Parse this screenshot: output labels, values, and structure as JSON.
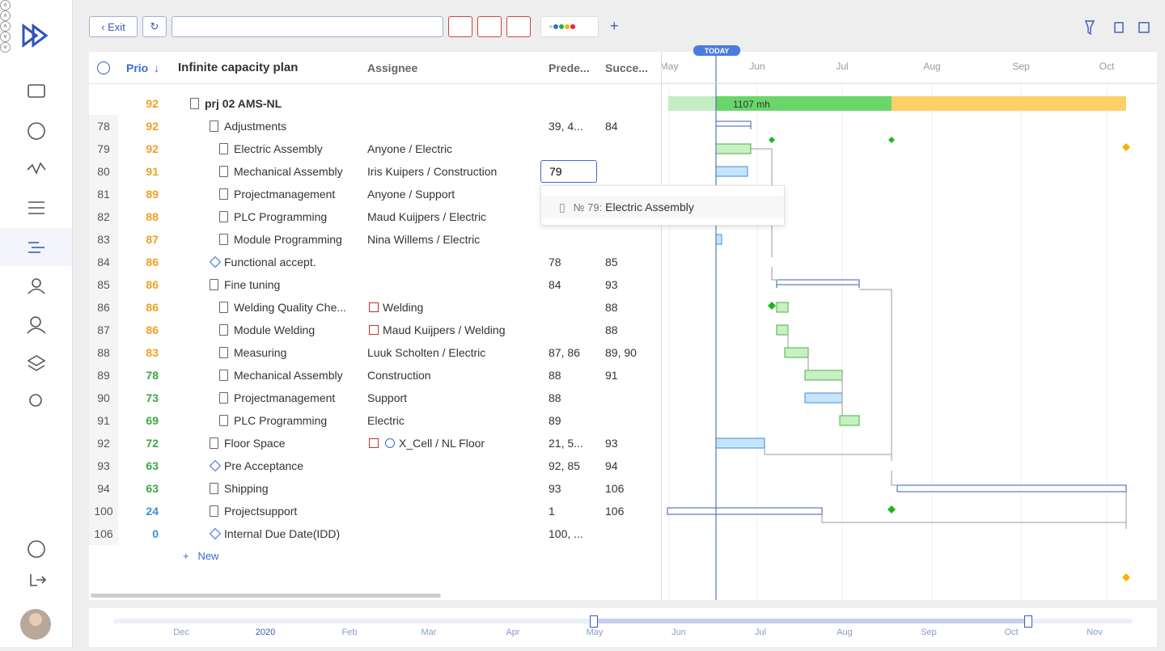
{
  "toolbar": {
    "exit": "Exit"
  },
  "columns": {
    "prio": "Prio",
    "plan": "Infinite capacity plan",
    "assignee": "Assignee",
    "predecessors": "Prede...",
    "successors": "Succe..."
  },
  "gantt": {
    "today": "TODAY",
    "months": [
      "May",
      "Jun",
      "Jul",
      "Aug",
      "Sep",
      "Oct"
    ],
    "project_bar_label": "1107 mh"
  },
  "rows": [
    {
      "prio": 92,
      "name": "prj 02 AMS-NL"
    },
    {
      "id": 78,
      "prio": 92,
      "name": "Adjustments",
      "predecessors": "39, 4...",
      "successors": "84"
    },
    {
      "id": 79,
      "prio": 92,
      "name": "Electric Assembly",
      "assignee": "Anyone / Electric"
    },
    {
      "id": 80,
      "prio": 91,
      "name": "Mechanical Assembly",
      "assignee": "Iris Kuipers / Construction",
      "predecessors": "79"
    },
    {
      "id": 81,
      "prio": 89,
      "name": "Projectmanagement",
      "assignee": "Anyone / Support"
    },
    {
      "id": 82,
      "prio": 88,
      "name": "PLC Programming",
      "assignee": "Maud Kuijpers / Electric"
    },
    {
      "id": 83,
      "prio": 87,
      "name": "Module Programming",
      "assignee": "Nina Willems / Electric"
    },
    {
      "id": 84,
      "prio": 86,
      "name": "Functional accept.",
      "predecessors": "78",
      "successors": "85"
    },
    {
      "id": 85,
      "prio": 86,
      "name": "Fine tuning",
      "predecessors": "84",
      "successors": "93"
    },
    {
      "id": 86,
      "prio": 86,
      "name": "Welding Quality Che...",
      "assignee": "Welding",
      "successors": "88"
    },
    {
      "id": 87,
      "prio": 86,
      "name": "Module Welding",
      "assignee": "Maud Kuijpers / Welding",
      "successors": "88"
    },
    {
      "id": 88,
      "prio": 83,
      "name": "Measuring",
      "assignee": "Luuk Scholten / Electric",
      "predecessors": "87, 86",
      "successors": "89, 90"
    },
    {
      "id": 89,
      "prio": 78,
      "name": "Mechanical Assembly",
      "assignee": "Construction",
      "predecessors": "88",
      "successors": "91"
    },
    {
      "id": 90,
      "prio": 73,
      "name": "Projectmanagement",
      "assignee": "Support",
      "predecessors": "88"
    },
    {
      "id": 91,
      "prio": 69,
      "name": "PLC Programming",
      "assignee": "Electric",
      "predecessors": "89"
    },
    {
      "id": 92,
      "prio": 72,
      "name": "Floor Space",
      "assignee": "X_Cell / NL Floor",
      "predecessors": "21, 5...",
      "successors": "93"
    },
    {
      "id": 93,
      "prio": 63,
      "name": "Pre Acceptance",
      "predecessors": "92, 85",
      "successors": "94"
    },
    {
      "id": 94,
      "prio": 63,
      "name": "Shipping",
      "predecessors": "93",
      "successors": "106"
    },
    {
      "id": 100,
      "prio": 24,
      "name": "Projectsupport",
      "predecessors": "1",
      "successors": "106"
    },
    {
      "id": 106,
      "prio": 0,
      "name": "Internal Due Date(IDD)",
      "predecessors": "100, ..."
    }
  ],
  "dropdown": {
    "number": "№ 79:",
    "name": "Electric Assembly"
  },
  "new_row": "New",
  "timeline": [
    "Dec",
    "2020",
    "Feb",
    "Mar",
    "Apr",
    "May",
    "Jun",
    "Jul",
    "Aug",
    "Sep",
    "Oct",
    "Nov"
  ]
}
